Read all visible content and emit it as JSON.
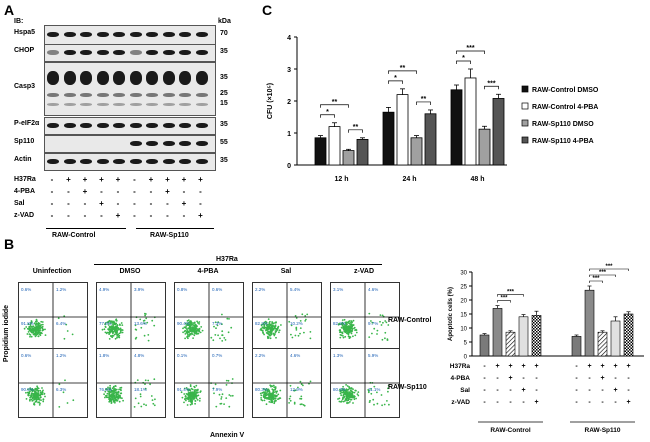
{
  "panel_a": {
    "letter": "A",
    "ib_label": "IB:",
    "kda_label": "kDa",
    "blots": [
      {
        "name": "Hspa5",
        "kda": [
          "70"
        ]
      },
      {
        "name": "CHOP",
        "kda": [
          "35"
        ]
      },
      {
        "name": "Casp3",
        "kda": [
          "35",
          "25",
          "15"
        ]
      },
      {
        "name": "P-eIF2α",
        "kda": [
          "35"
        ]
      },
      {
        "name": "Sp110",
        "kda": [
          "55"
        ]
      },
      {
        "name": "Actin",
        "kda": [
          "35"
        ]
      }
    ],
    "treatment_rows": [
      {
        "label": "H37Ra",
        "signs": [
          "-",
          "+",
          "+",
          "+",
          "+",
          "-",
          "+",
          "+",
          "+",
          "+"
        ]
      },
      {
        "label": "4-PBA",
        "signs": [
          "-",
          "-",
          "+",
          "-",
          "-",
          "-",
          "-",
          "+",
          "-",
          "-"
        ]
      },
      {
        "label": "Sal",
        "signs": [
          "-",
          "-",
          "-",
          "+",
          "-",
          "-",
          "-",
          "-",
          "+",
          "-"
        ]
      },
      {
        "label": "z-VAD",
        "signs": [
          "-",
          "-",
          "-",
          "-",
          "+",
          "-",
          "-",
          "-",
          "-",
          "+"
        ]
      }
    ],
    "groups": [
      "RAW-Control",
      "RAW-Sp110"
    ]
  },
  "panel_c": {
    "letter": "C",
    "chart_data": {
      "type": "bar",
      "categories": [
        "12 h",
        "24 h",
        "48 h"
      ],
      "ylabel": "CFU (×10⁵)",
      "ylim": [
        0,
        4
      ],
      "yticks": [
        "0",
        "1",
        "2",
        "3",
        "4"
      ],
      "series": [
        {
          "name": "RAW-Control DMSO",
          "color": "#111111",
          "values": [
            0.85,
            1.65,
            2.35
          ],
          "errors": [
            0.07,
            0.15,
            0.15
          ]
        },
        {
          "name": "RAW-Control 4-PBA",
          "color": "#ffffff",
          "values": [
            1.2,
            2.2,
            2.72
          ],
          "errors": [
            0.12,
            0.18,
            0.28
          ]
        },
        {
          "name": "RAW-Sp110 DMSO",
          "color": "#a0a0a0",
          "values": [
            0.45,
            0.85,
            1.12
          ],
          "errors": [
            0.04,
            0.07,
            0.09
          ]
        },
        {
          "name": "RAW-Sp110 4-PBA",
          "color": "#555555",
          "values": [
            0.8,
            1.6,
            2.08
          ],
          "errors": [
            0.05,
            0.12,
            0.13
          ]
        }
      ],
      "significance": [
        {
          "group": "12 h",
          "marks": [
            "*",
            "**",
            "**"
          ]
        },
        {
          "group": "24 h",
          "marks": [
            "*",
            "**",
            "**"
          ]
        },
        {
          "group": "48 h",
          "marks": [
            "*",
            "***",
            "***"
          ]
        }
      ]
    }
  },
  "panel_b": {
    "letter": "B",
    "h37ra_label": "H37Ra",
    "columns": [
      "Uninfection",
      "DMSO",
      "4-PBA",
      "Sal",
      "z-VAD"
    ],
    "rows": [
      "RAW-Control",
      "RAW-Sp110"
    ],
    "x_axis": "Annexin V",
    "y_axis": "Propidium iodide",
    "plots": [
      [
        {
          "q1": "0.6%",
          "q2": "1.2%",
          "q3": "91.8%",
          "q4": "6.4%"
        },
        {
          "q1": "4.9%",
          "q2": "3.9%",
          "q3": "77.6%",
          "q4": "13.6%"
        },
        {
          "q1": "0.8%",
          "q2": "0.6%",
          "q3": "90.4%",
          "q4": "7.3%"
        },
        {
          "q1": "2.2%",
          "q2": "5.4%",
          "q3": "82.2%",
          "q4": "10.2%"
        },
        {
          "q1": "3.1%",
          "q2": "4.6%",
          "q3": "82.2%",
          "q4": "9.7%"
        }
      ],
      [
        {
          "q1": "0.6%",
          "q2": "1.2%",
          "q3": "90.9%",
          "q4": "6.3%"
        },
        {
          "q1": "1.8%",
          "q2": "4.8%",
          "q3": "76.5%",
          "q4": "18.1%"
        },
        {
          "q1": "0.1%",
          "q2": "0.7%",
          "q3": "91.4%",
          "q4": "7.9%"
        },
        {
          "q1": "2.2%",
          "q2": "4.6%",
          "q3": "80.3%",
          "q4": "12.9%"
        },
        {
          "q1": "1.3%",
          "q2": "5.9%",
          "q3": "80.3%",
          "q4": "11.1%"
        }
      ]
    ],
    "bar_chart": {
      "type": "bar",
      "ylabel": "Apoptotic cells (%)",
      "ylim": [
        0,
        30
      ],
      "yticks": [
        "0",
        "5",
        "10",
        "15",
        "20",
        "25",
        "30"
      ],
      "groups": [
        "RAW-Control",
        "RAW-Sp110"
      ],
      "values": [
        [
          7.5,
          17,
          8.5,
          14,
          14.5
        ],
        [
          7,
          23.5,
          8.5,
          12.5,
          15
        ]
      ],
      "errors": [
        [
          0.5,
          1.0,
          0.5,
          0.8,
          1.5
        ],
        [
          0.5,
          1.5,
          0.5,
          1.5,
          0.8
        ]
      ],
      "fills": [
        "#7a7a7a",
        "#8a8a8a",
        "hatch",
        "#e0e0e0",
        "check"
      ],
      "significance": [
        {
          "group": "RAW-Control",
          "marks": [
            "***",
            "***"
          ]
        },
        {
          "group": "RAW-Sp110",
          "marks": [
            "***",
            "***",
            "***"
          ]
        }
      ],
      "treatment_rows": [
        {
          "label": "H37Ra",
          "signs": [
            "-",
            "+",
            "+",
            "+",
            "+",
            "-",
            "+",
            "+",
            "+",
            "+"
          ]
        },
        {
          "label": "4-PBA",
          "signs": [
            "-",
            "-",
            "+",
            "-",
            "-",
            "-",
            "-",
            "+",
            "-",
            "-"
          ]
        },
        {
          "label": "Sal",
          "signs": [
            "-",
            "-",
            "-",
            "+",
            "-",
            "-",
            "-",
            "-",
            "+",
            "-"
          ]
        },
        {
          "label": "z-VAD",
          "signs": [
            "-",
            "-",
            "-",
            "-",
            "+",
            "-",
            "-",
            "-",
            "-",
            "+"
          ]
        }
      ]
    }
  }
}
